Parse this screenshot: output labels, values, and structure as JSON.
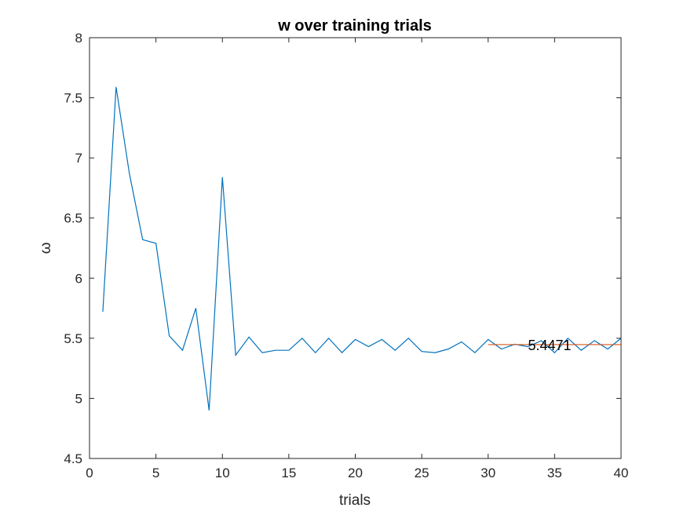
{
  "chart_data": {
    "type": "line",
    "title": "w over training trials",
    "xlabel": "trials",
    "ylabel": "ω",
    "xlim": [
      0,
      40
    ],
    "ylim": [
      4.5,
      8
    ],
    "xticks": [
      0,
      5,
      10,
      15,
      20,
      25,
      30,
      35,
      40
    ],
    "yticks": [
      4.5,
      5,
      5.5,
      6,
      6.5,
      7,
      7.5,
      8
    ],
    "grid": false,
    "series": [
      {
        "color": "#0072BD",
        "x": [
          1,
          2,
          3,
          4,
          5,
          6,
          7,
          8,
          9,
          10,
          11,
          12,
          13,
          14,
          15,
          16,
          17,
          18,
          19,
          20,
          21,
          22,
          23,
          24,
          25,
          26,
          27,
          28,
          29,
          30,
          31,
          32,
          33,
          34,
          35,
          36,
          37,
          38,
          39,
          40
        ],
        "y": [
          5.72,
          7.59,
          6.87,
          6.32,
          6.29,
          5.52,
          5.4,
          5.75,
          4.9,
          6.84,
          5.36,
          5.51,
          5.38,
          5.4,
          5.4,
          5.5,
          5.38,
          5.5,
          5.38,
          5.49,
          5.43,
          5.49,
          5.4,
          5.5,
          5.39,
          5.38,
          5.41,
          5.47,
          5.38,
          5.49,
          5.41,
          5.45,
          5.43,
          5.48,
          5.38,
          5.5,
          5.4,
          5.48,
          5.41,
          5.5
        ]
      },
      {
        "color": "#D95319",
        "x": [
          30,
          40
        ],
        "y": [
          5.4471,
          5.4471
        ]
      }
    ],
    "annotations": [
      {
        "text": "5.4471",
        "x": 33,
        "y": 5.4471
      }
    ]
  }
}
